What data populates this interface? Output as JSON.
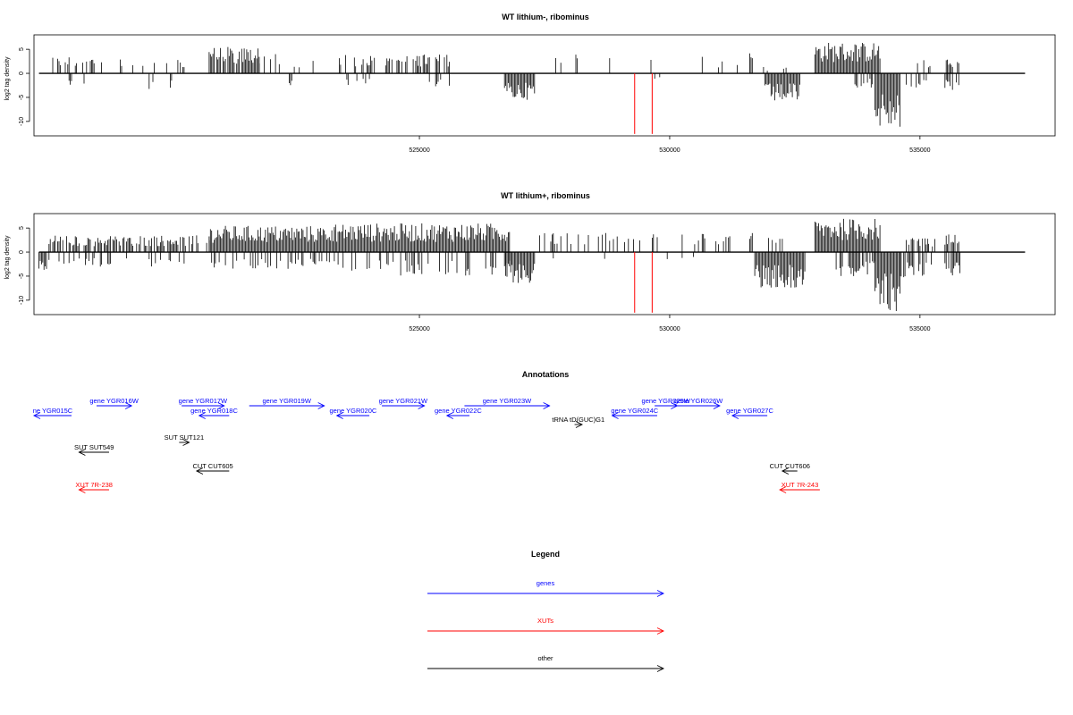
{
  "colors": {
    "genes": "#0000ff",
    "xuts": "#ff0000",
    "other": "#000000",
    "marker": "#ff0000",
    "signal": "#000000"
  },
  "chart_data": [
    {
      "type": "bar",
      "title": "WT lithium-, ribominus",
      "ylabel": "log2 tag density",
      "xlim": [
        517300,
        537700
      ],
      "ylim": [
        -13,
        8
      ],
      "xticks": [
        525000,
        530000,
        535000
      ],
      "yticks": [
        5,
        0,
        -5,
        -10
      ],
      "grid": false,
      "marker_positions": [
        529300,
        529650
      ],
      "regions": [
        {
          "sign": -1,
          "from": 517400,
          "to": 517450,
          "density": 0.3,
          "max": 2
        },
        {
          "sign": 1,
          "from": 517600,
          "to": 518500,
          "density": 0.4,
          "max": 3.5
        },
        {
          "sign": -1,
          "from": 517900,
          "to": 518500,
          "density": 0.2,
          "max": 3
        },
        {
          "sign": 1,
          "from": 518600,
          "to": 520500,
          "density": 0.15,
          "max": 3
        },
        {
          "sign": -1,
          "from": 519600,
          "to": 520100,
          "density": 0.25,
          "max": 3.5
        },
        {
          "sign": 1,
          "from": 520800,
          "to": 521800,
          "density": 0.9,
          "max": 5.5
        },
        {
          "sign": 1,
          "from": 521800,
          "to": 522400,
          "density": 0.3,
          "max": 4
        },
        {
          "sign": -1,
          "from": 522400,
          "to": 522450,
          "density": 1,
          "max": 3
        },
        {
          "sign": 1,
          "from": 522500,
          "to": 522900,
          "density": 0.25,
          "max": 3
        },
        {
          "sign": 1,
          "from": 523300,
          "to": 524100,
          "density": 0.35,
          "max": 4
        },
        {
          "sign": -1,
          "from": 523500,
          "to": 524100,
          "density": 0.2,
          "max": 3
        },
        {
          "sign": 1,
          "from": 524300,
          "to": 525600,
          "density": 0.5,
          "max": 4
        },
        {
          "sign": -1,
          "from": 525200,
          "to": 525700,
          "density": 0.25,
          "max": 3
        },
        {
          "sign": -1,
          "from": 526700,
          "to": 527300,
          "density": 1.0,
          "max": 5.5
        },
        {
          "sign": 1,
          "from": 527500,
          "to": 528800,
          "density": 0.15,
          "max": 4
        },
        {
          "sign": 1,
          "from": 529200,
          "to": 531500,
          "density": 0.06,
          "max": 3.5
        },
        {
          "sign": -1,
          "from": 529700,
          "to": 529800,
          "density": 0.3,
          "max": 1.5
        },
        {
          "sign": 1,
          "from": 531600,
          "to": 531650,
          "density": 1,
          "max": 4.5
        },
        {
          "sign": -1,
          "from": 531900,
          "to": 532600,
          "density": 1.0,
          "max": 6
        },
        {
          "sign": 1,
          "from": 531800,
          "to": 532400,
          "density": 0.15,
          "max": 1.5
        },
        {
          "sign": 1,
          "from": 532900,
          "to": 534200,
          "density": 1.0,
          "max": 6.5
        },
        {
          "sign": -1,
          "from": 533700,
          "to": 534100,
          "density": 0.5,
          "max": 3
        },
        {
          "sign": -1,
          "from": 534100,
          "to": 534600,
          "density": 1.0,
          "max": 11.5
        },
        {
          "sign": -1,
          "from": 534700,
          "to": 535200,
          "density": 0.5,
          "max": 4
        },
        {
          "sign": 1,
          "from": 534900,
          "to": 535200,
          "density": 0.3,
          "max": 3
        },
        {
          "sign": 1,
          "from": 535500,
          "to": 535800,
          "density": 0.5,
          "max": 3
        },
        {
          "sign": -1,
          "from": 535500,
          "to": 535800,
          "density": 0.7,
          "max": 3.5
        }
      ]
    },
    {
      "type": "bar",
      "title": "WT lithium+, ribominus",
      "ylabel": "log2 tag density",
      "xlim": [
        517300,
        537700
      ],
      "ylim": [
        -13,
        8
      ],
      "xticks": [
        525000,
        530000,
        535000
      ],
      "yticks": [
        5,
        0,
        -5,
        -10
      ],
      "grid": false,
      "marker_positions": [
        529300,
        529650
      ],
      "regions": [
        {
          "sign": -1,
          "from": 517400,
          "to": 517600,
          "density": 0.8,
          "max": 4
        },
        {
          "sign": 1,
          "from": 517600,
          "to": 520800,
          "density": 0.7,
          "max": 3.5
        },
        {
          "sign": -1,
          "from": 517800,
          "to": 520800,
          "density": 0.25,
          "max": 3
        },
        {
          "sign": 1,
          "from": 520800,
          "to": 523300,
          "density": 1.0,
          "max": 5.5
        },
        {
          "sign": -1,
          "from": 520800,
          "to": 523300,
          "density": 0.3,
          "max": 3.5
        },
        {
          "sign": 1,
          "from": 523300,
          "to": 526800,
          "density": 1.0,
          "max": 6
        },
        {
          "sign": -1,
          "from": 523300,
          "to": 526800,
          "density": 0.25,
          "max": 5
        },
        {
          "sign": -1,
          "from": 526700,
          "to": 527300,
          "density": 1.0,
          "max": 6.5
        },
        {
          "sign": 1,
          "from": 527300,
          "to": 531200,
          "density": 0.25,
          "max": 4
        },
        {
          "sign": -1,
          "from": 527300,
          "to": 531200,
          "density": 0.05,
          "max": 1.5
        },
        {
          "sign": 1,
          "from": 531600,
          "to": 531650,
          "density": 1,
          "max": 6
        },
        {
          "sign": -1,
          "from": 531700,
          "to": 532700,
          "density": 1.0,
          "max": 7.5
        },
        {
          "sign": 1,
          "from": 531900,
          "to": 532300,
          "density": 0.3,
          "max": 3
        },
        {
          "sign": 1,
          "from": 532900,
          "to": 534200,
          "density": 1.0,
          "max": 7
        },
        {
          "sign": -1,
          "from": 533300,
          "to": 534100,
          "density": 0.7,
          "max": 5
        },
        {
          "sign": -1,
          "from": 534100,
          "to": 534600,
          "density": 1.0,
          "max": 12.5
        },
        {
          "sign": -1,
          "from": 534600,
          "to": 535300,
          "density": 0.6,
          "max": 6
        },
        {
          "sign": 1,
          "from": 534700,
          "to": 535300,
          "density": 0.4,
          "max": 3
        },
        {
          "sign": 1,
          "from": 535500,
          "to": 535800,
          "density": 0.8,
          "max": 4
        },
        {
          "sign": -1,
          "from": 535500,
          "to": 535800,
          "density": 0.8,
          "max": 5
        }
      ]
    }
  ],
  "annotations": {
    "title": "Annotations",
    "items": [
      {
        "label": "ne YGR015C",
        "class": "genes",
        "strand": "-",
        "start": 517300,
        "end": 518050,
        "row": 2
      },
      {
        "label": "gene YGR016W",
        "class": "genes",
        "strand": "+",
        "start": 518550,
        "end": 519250,
        "row": 1
      },
      {
        "label": "gene YGR017W",
        "class": "genes",
        "strand": "+",
        "start": 520250,
        "end": 521100,
        "row": 1
      },
      {
        "label": "gene YGR018C",
        "class": "genes",
        "strand": "-",
        "start": 520600,
        "end": 521200,
        "row": 2
      },
      {
        "label": "gene YGR019W",
        "class": "genes",
        "strand": "+",
        "start": 521600,
        "end": 523100,
        "row": 1
      },
      {
        "label": "gene YGR020C",
        "class": "genes",
        "strand": "-",
        "start": 523350,
        "end": 524000,
        "row": 2
      },
      {
        "label": "gene YGR021W",
        "class": "genes",
        "strand": "+",
        "start": 524250,
        "end": 525100,
        "row": 1
      },
      {
        "label": "gene YGR022C",
        "class": "genes",
        "strand": "-",
        "start": 525550,
        "end": 526000,
        "row": 2
      },
      {
        "label": "gene YGR023W",
        "class": "genes",
        "strand": "+",
        "start": 525900,
        "end": 527600,
        "row": 1
      },
      {
        "label": "tRNA tD(GUC)G1",
        "class": "other",
        "strand": "+",
        "start": 528100,
        "end": 528250,
        "row": 3
      },
      {
        "label": "gene YGR024C",
        "class": "genes",
        "strand": "-",
        "start": 528850,
        "end": 529750,
        "row": 2
      },
      {
        "label": "gene YGR025W",
        "class": "genes",
        "strand": "+",
        "start": 529700,
        "end": 530150,
        "row": 1
      },
      {
        "label": "gene YGR026W",
        "class": "genes",
        "strand": "+",
        "start": 530150,
        "end": 531000,
        "row": 1
      },
      {
        "label": "gene YGR027C",
        "class": "genes",
        "strand": "-",
        "start": 531250,
        "end": 531950,
        "row": 2
      },
      {
        "label": "SUT SUT549",
        "class": "other",
        "strand": "-",
        "start": 518200,
        "end": 518800,
        "row": 4
      },
      {
        "label": "SUT SUT121",
        "class": "other",
        "strand": "+",
        "start": 520200,
        "end": 520400,
        "row": 5
      },
      {
        "label": "CUT CUT605",
        "class": "other",
        "strand": "-",
        "start": 520550,
        "end": 521200,
        "row": 6
      },
      {
        "label": "CUT CUT606",
        "class": "other",
        "strand": "-",
        "start": 532250,
        "end": 532550,
        "row": 6
      },
      {
        "label": "XUT 7R-238",
        "class": "xuts",
        "strand": "-",
        "start": 518200,
        "end": 518800,
        "row": 7
      },
      {
        "label": "XUT 7R-243",
        "class": "xuts",
        "strand": "-",
        "start": 532200,
        "end": 533000,
        "row": 7
      }
    ]
  },
  "legend": {
    "title": "Legend",
    "items": [
      {
        "label": "genes",
        "class": "genes"
      },
      {
        "label": "XUTs",
        "class": "xuts"
      },
      {
        "label": "other",
        "class": "other"
      }
    ]
  }
}
